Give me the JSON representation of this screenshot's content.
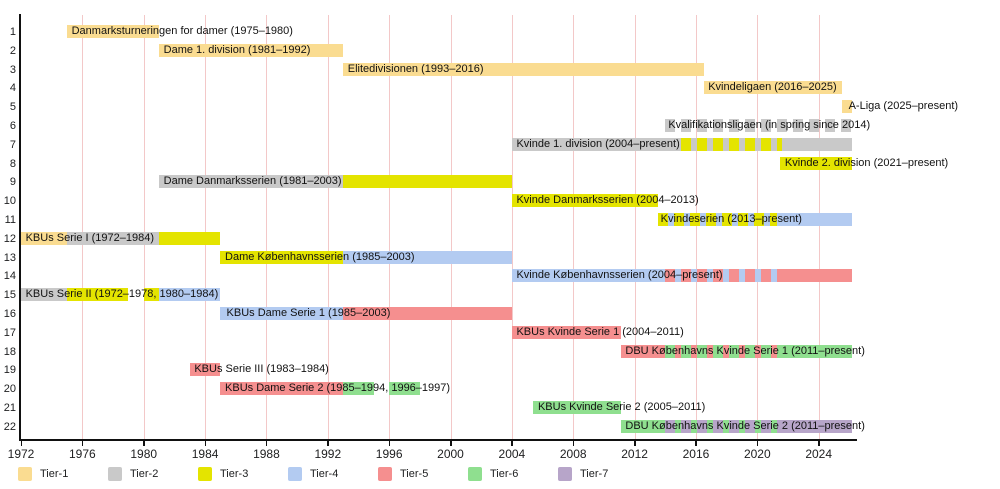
{
  "chart_data": {
    "type": "bar",
    "variant": "horizontal-timeline-gantt",
    "title": "",
    "description_visible_text_only": true,
    "x_axis": {
      "min": 1972,
      "max": 2026.3,
      "ticks": [
        1972,
        1976,
        1980,
        1984,
        1988,
        1992,
        1996,
        2000,
        2004,
        2008,
        2012,
        2016,
        2020,
        2024
      ],
      "gridlines": true,
      "gridline_color": "#f3c8c8"
    },
    "colors": {
      "tier1": "#fadc91",
      "tier2": "#c9c9c9",
      "tier3": "#e4e400",
      "tier4": "#b3cbf1",
      "tier5": "#f58f8f",
      "tier6": "#8fdf8f",
      "tier7": "#b7a5c9",
      "bg": "#ffffff",
      "axis": "#111111",
      "text": "#202122"
    },
    "legend": {
      "position": "bottom",
      "entries": [
        {
          "label": "Tier-1",
          "tier": "tier1"
        },
        {
          "label": "Tier-2",
          "tier": "tier2"
        },
        {
          "label": "Tier-3",
          "tier": "tier3"
        },
        {
          "label": "Tier-4",
          "tier": "tier4"
        },
        {
          "label": "Tier-5",
          "tier": "tier5"
        },
        {
          "label": "Tier-6",
          "tier": "tier6"
        },
        {
          "label": "Tier-7",
          "tier": "tier7"
        }
      ]
    },
    "rows": [
      {
        "num": 1,
        "label": "Danmarksturneringen for damer (1975–1980)",
        "label_year": 1975.3,
        "segments": [
          {
            "start": 1975,
            "end": 1981,
            "tier": "tier1"
          }
        ]
      },
      {
        "num": 2,
        "label": "Dame 1. division (1981–1992)",
        "label_year": 1981.3,
        "segments": [
          {
            "start": 1981,
            "end": 1993,
            "tier": "tier1"
          }
        ]
      },
      {
        "num": 3,
        "label": "Elitedivisionen (1993–2016)",
        "label_year": 1993.3,
        "segments": [
          {
            "start": 1993,
            "end": 2016.5,
            "tier": "tier1"
          }
        ]
      },
      {
        "num": 4,
        "label": "Kvindeligaen (2016–2025)",
        "label_year": 2016.8,
        "segments": [
          {
            "start": 2016.5,
            "end": 2025.5,
            "tier": "tier1"
          }
        ]
      },
      {
        "num": 5,
        "label": "A-Liga (2025–present)",
        "label_year": 2025.95,
        "segments": [
          {
            "start": 2025.5,
            "end": 2026.2,
            "tier": "tier1"
          }
        ]
      },
      {
        "num": 6,
        "label": "Kvalifikationsligaen (in spring since 2014)",
        "label_year": 2014.2,
        "segments": [
          {
            "start": 2014,
            "end": 2026.2,
            "stripe": [
              "tier2",
              "bg"
            ]
          }
        ]
      },
      {
        "num": 7,
        "label": "Kvinde 1. division (2004–present)",
        "label_year": 2004.3,
        "segments": [
          {
            "start": 2004,
            "end": 2015,
            "tier": "tier2"
          },
          {
            "start": 2015,
            "end": 2021.6,
            "stripe": [
              "tier3",
              "tier2"
            ]
          },
          {
            "start": 2021.6,
            "end": 2026.2,
            "tier": "tier2"
          }
        ]
      },
      {
        "num": 8,
        "label": "Kvinde 2. division (2021–present)",
        "label_year": 2021.8,
        "segments": [
          {
            "start": 2021.5,
            "end": 2026.2,
            "tier": "tier3"
          }
        ]
      },
      {
        "num": 9,
        "label": "Dame Danmarksserien (1981–2003)",
        "label_year": 1981.3,
        "segments": [
          {
            "start": 1981,
            "end": 1993,
            "tier": "tier2"
          },
          {
            "start": 1993,
            "end": 2004,
            "tier": "tier3"
          }
        ]
      },
      {
        "num": 10,
        "label": "Kvinde Danmarksserien (2004–2013)",
        "label_year": 2004.3,
        "segments": [
          {
            "start": 2004,
            "end": 2013.5,
            "tier": "tier3"
          }
        ]
      },
      {
        "num": 11,
        "label": "Kvindeserien (2013–present)",
        "label_year": 2013.7,
        "segments": [
          {
            "start": 2013.5,
            "end": 2021.3,
            "stripe": [
              "tier3",
              "tier4"
            ]
          },
          {
            "start": 2021.3,
            "end": 2026.2,
            "tier": "tier4"
          }
        ]
      },
      {
        "num": 12,
        "label": "KBUs Serie I (1972–1984)",
        "label_year": 1972.3,
        "segments": [
          {
            "start": 1972,
            "end": 1975,
            "tier": "tier1"
          },
          {
            "start": 1975,
            "end": 1981,
            "tier": "tier2"
          },
          {
            "start": 1981,
            "end": 1985,
            "tier": "tier3"
          }
        ]
      },
      {
        "num": 13,
        "label": "Dame Københavnsserien (1985–2003)",
        "label_year": 1985.3,
        "segments": [
          {
            "start": 1985,
            "end": 1993,
            "tier": "tier3"
          },
          {
            "start": 1993,
            "end": 2004,
            "tier": "tier4"
          }
        ]
      },
      {
        "num": 14,
        "label": "Kvinde Københavnsserien (2004–present)",
        "label_year": 2004.3,
        "segments": [
          {
            "start": 2004,
            "end": 2014,
            "tier": "tier4"
          },
          {
            "start": 2014,
            "end": 2021.3,
            "stripe": [
              "tier5",
              "tier4"
            ]
          },
          {
            "start": 2021.3,
            "end": 2026.2,
            "tier": "tier5"
          }
        ]
      },
      {
        "num": 15,
        "label": "KBUs Serie II (1972–1978, 1980–1984)",
        "label_year": 1972.3,
        "segments": [
          {
            "start": 1972,
            "end": 1975,
            "tier": "tier2"
          },
          {
            "start": 1975,
            "end": 1979,
            "tier": "tier3"
          },
          {
            "start": 1980,
            "end": 1981,
            "tier": "tier3"
          },
          {
            "start": 1981,
            "end": 1985,
            "tier": "tier4"
          }
        ]
      },
      {
        "num": 16,
        "label": "KBUs Dame Serie 1 (1985–2003)",
        "label_year": 1985.4,
        "segments": [
          {
            "start": 1985,
            "end": 1993,
            "tier": "tier4"
          },
          {
            "start": 1993,
            "end": 2004,
            "tier": "tier5"
          }
        ]
      },
      {
        "num": 17,
        "label": "KBUs Kvinde Serie 1 (2004–2011)",
        "label_year": 2004.3,
        "segments": [
          {
            "start": 2004,
            "end": 2011.1,
            "tier": "tier5"
          }
        ]
      },
      {
        "num": 18,
        "label": "DBU Københavns Kvinde Serie 1 (2011–present)",
        "label_year": 2011.4,
        "segments": [
          {
            "start": 2011.1,
            "end": 2014,
            "tier": "tier5"
          },
          {
            "start": 2014,
            "end": 2021.3,
            "stripe": [
              "tier6",
              "tier5"
            ]
          },
          {
            "start": 2021.3,
            "end": 2026.2,
            "tier": "tier6"
          }
        ]
      },
      {
        "num": 19,
        "label": "KBUs Serie III (1983–1984)",
        "label_year": 1983.3,
        "segments": [
          {
            "start": 1983,
            "end": 1985,
            "tier": "tier5"
          }
        ]
      },
      {
        "num": 20,
        "label": "KBUs Dame Serie 2 (1985–1994, 1996–1997)",
        "label_year": 1985.3,
        "segments": [
          {
            "start": 1985,
            "end": 1993,
            "tier": "tier5"
          },
          {
            "start": 1993,
            "end": 1995,
            "tier": "tier6"
          },
          {
            "start": 1996,
            "end": 1998,
            "tier": "tier6"
          }
        ]
      },
      {
        "num": 21,
        "label": "KBUs Kvinde Serie 2 (2005–2011)",
        "label_year": 2005.7,
        "segments": [
          {
            "start": 2005.4,
            "end": 2011.1,
            "tier": "tier6"
          }
        ]
      },
      {
        "num": 22,
        "label": "DBU Københavns Kvinde Serie 2 (2011–present)",
        "label_year": 2011.4,
        "segments": [
          {
            "start": 2011.1,
            "end": 2014,
            "tier": "tier6"
          },
          {
            "start": 2014,
            "end": 2021.3,
            "stripe": [
              "tier7",
              "tier6"
            ]
          },
          {
            "start": 2021.3,
            "end": 2026.2,
            "tier": "tier7"
          }
        ]
      }
    ]
  }
}
